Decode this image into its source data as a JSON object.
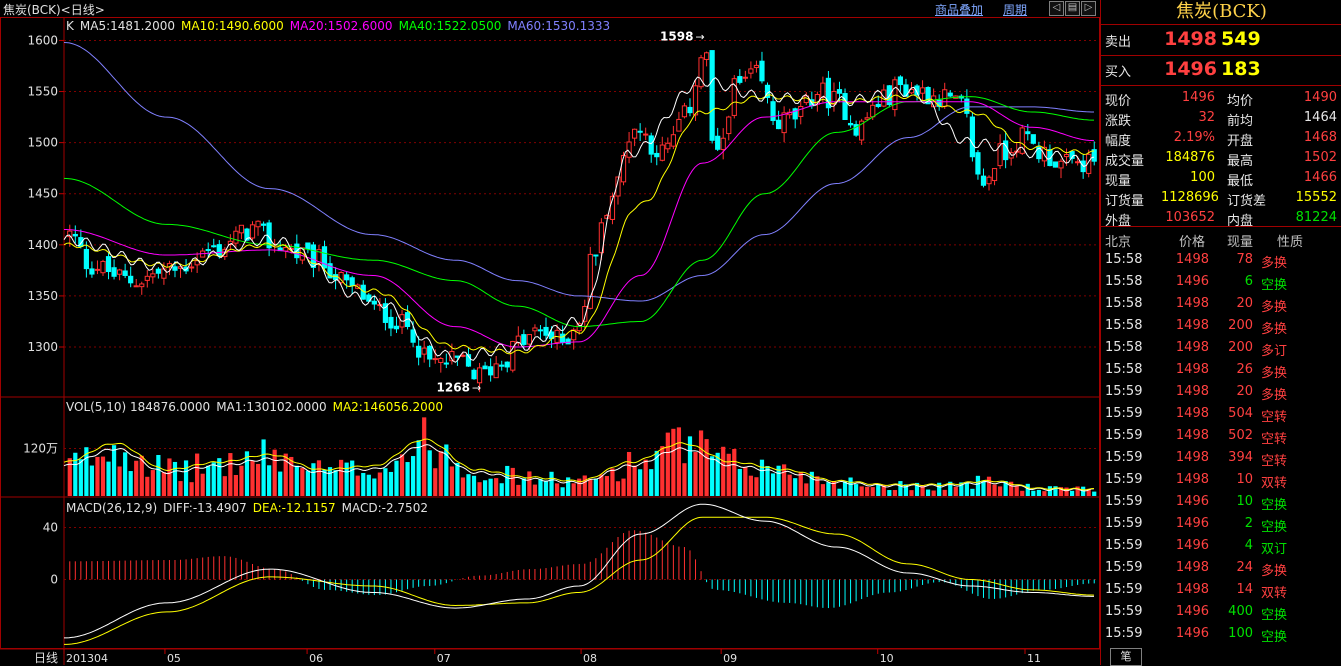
{
  "header": {
    "title": "焦炭(BCK)<日线>",
    "menu_overlay": "商品叠加",
    "menu_period": "周期"
  },
  "chart_data": [
    {
      "type": "candlestick",
      "panel": "price",
      "ma_text": [
        {
          "label": "K",
          "color": "#e0e0e0"
        },
        {
          "label": "MA5:1481.2000",
          "color": "#e0e0e0"
        },
        {
          "label": "MA10:1490.6000",
          "color": "#ffff00"
        },
        {
          "label": "MA20:1502.6000",
          "color": "#ff00ff"
        },
        {
          "label": "MA40:1522.0500",
          "color": "#00ff00"
        },
        {
          "label": "MA60:1530.1333",
          "color": "#8080ff"
        }
      ],
      "y_ticks": [
        1300,
        1350,
        1400,
        1450,
        1500,
        1550,
        1600
      ],
      "ylim": [
        1255,
        1620
      ],
      "annotations": [
        {
          "text": "1598",
          "value": 1598,
          "at": 0.615
        },
        {
          "text": "1268",
          "value": 1268,
          "at": 0.398
        }
      ],
      "anchors": [
        [
          0,
          1410
        ],
        [
          0.02,
          1380
        ],
        [
          0.06,
          1365
        ],
        [
          0.1,
          1375
        ],
        [
          0.14,
          1395
        ],
        [
          0.18,
          1415
        ],
        [
          0.2,
          1400
        ],
        [
          0.24,
          1385
        ],
        [
          0.28,
          1355
        ],
        [
          0.3,
          1335
        ],
        [
          0.33,
          1320
        ],
        [
          0.35,
          1285
        ],
        [
          0.38,
          1285
        ],
        [
          0.4,
          1272
        ],
        [
          0.42,
          1285
        ],
        [
          0.44,
          1305
        ],
        [
          0.46,
          1315
        ],
        [
          0.48,
          1305
        ],
        [
          0.5,
          1330
        ],
        [
          0.51,
          1390
        ],
        [
          0.53,
          1450
        ],
        [
          0.55,
          1515
        ],
        [
          0.58,
          1490
        ],
        [
          0.6,
          1525
        ],
        [
          0.62,
          1590
        ],
        [
          0.63,
          1480
        ],
        [
          0.65,
          1555
        ],
        [
          0.67,
          1565
        ],
        [
          0.69,
          1520
        ],
        [
          0.71,
          1525
        ],
        [
          0.73,
          1550
        ],
        [
          0.75,
          1540
        ],
        [
          0.77,
          1515
        ],
        [
          0.79,
          1540
        ],
        [
          0.81,
          1555
        ],
        [
          0.83,
          1550
        ],
        [
          0.85,
          1545
        ],
        [
          0.87,
          1535
        ],
        [
          0.89,
          1460
        ],
        [
          0.91,
          1490
        ],
        [
          0.93,
          1505
        ],
        [
          0.95,
          1490
        ],
        [
          0.97,
          1478
        ],
        [
          1.0,
          1480
        ]
      ],
      "ma5": [
        [
          0,
          1405
        ],
        [
          0.1,
          1378
        ],
        [
          0.2,
          1405
        ],
        [
          0.3,
          1345
        ],
        [
          0.38,
          1290
        ],
        [
          0.44,
          1300
        ],
        [
          0.5,
          1325
        ],
        [
          0.55,
          1490
        ],
        [
          0.62,
          1560
        ],
        [
          0.68,
          1545
        ],
        [
          0.75,
          1540
        ],
        [
          0.82,
          1550
        ],
        [
          0.88,
          1500
        ],
        [
          0.94,
          1490
        ],
        [
          1.0,
          1481
        ]
      ],
      "ma10": [
        [
          0,
          1400
        ],
        [
          0.1,
          1380
        ],
        [
          0.2,
          1400
        ],
        [
          0.3,
          1355
        ],
        [
          0.38,
          1300
        ],
        [
          0.44,
          1295
        ],
        [
          0.5,
          1315
        ],
        [
          0.56,
          1440
        ],
        [
          0.62,
          1530
        ],
        [
          0.68,
          1545
        ],
        [
          0.75,
          1540
        ],
        [
          0.82,
          1545
        ],
        [
          0.88,
          1530
        ],
        [
          0.94,
          1495
        ],
        [
          1.0,
          1490
        ]
      ],
      "ma20": [
        [
          0,
          1415
        ],
        [
          0.1,
          1390
        ],
        [
          0.2,
          1395
        ],
        [
          0.3,
          1370
        ],
        [
          0.38,
          1320
        ],
        [
          0.44,
          1300
        ],
        [
          0.5,
          1305
        ],
        [
          0.56,
          1370
        ],
        [
          0.62,
          1480
        ],
        [
          0.68,
          1525
        ],
        [
          0.75,
          1540
        ],
        [
          0.82,
          1540
        ],
        [
          0.88,
          1540
        ],
        [
          0.94,
          1515
        ],
        [
          1.0,
          1502
        ]
      ],
      "ma40": [
        [
          0,
          1465
        ],
        [
          0.1,
          1420
        ],
        [
          0.2,
          1400
        ],
        [
          0.3,
          1385
        ],
        [
          0.38,
          1365
        ],
        [
          0.44,
          1340
        ],
        [
          0.5,
          1320
        ],
        [
          0.56,
          1325
        ],
        [
          0.62,
          1385
        ],
        [
          0.68,
          1450
        ],
        [
          0.75,
          1510
        ],
        [
          0.82,
          1540
        ],
        [
          0.88,
          1545
        ],
        [
          0.94,
          1530
        ],
        [
          1.0,
          1522
        ]
      ],
      "ma60": [
        [
          0,
          1598
        ],
        [
          0.1,
          1525
        ],
        [
          0.2,
          1455
        ],
        [
          0.3,
          1410
        ],
        [
          0.38,
          1385
        ],
        [
          0.44,
          1365
        ],
        [
          0.5,
          1350
        ],
        [
          0.56,
          1345
        ],
        [
          0.62,
          1370
        ],
        [
          0.68,
          1410
        ],
        [
          0.75,
          1460
        ],
        [
          0.82,
          1505
        ],
        [
          0.88,
          1535
        ],
        [
          0.94,
          1535
        ],
        [
          1.0,
          1530
        ]
      ]
    },
    {
      "type": "bar",
      "panel": "volume",
      "text": [
        {
          "label": "VOL(5,10) 184876.0000",
          "color": "#e0e0e0"
        },
        {
          "label": "MA1:130102.0000",
          "color": "#e0e0e0"
        },
        {
          "label": "MA2:146056.2000",
          "color": "#ffff00"
        }
      ],
      "y_tick_label": "120万",
      "y_tick_value": 120,
      "ylim": [
        0,
        240
      ],
      "envelope": [
        [
          0,
          90
        ],
        [
          0.05,
          140
        ],
        [
          0.1,
          70
        ],
        [
          0.15,
          90
        ],
        [
          0.2,
          110
        ],
        [
          0.25,
          70
        ],
        [
          0.3,
          80
        ],
        [
          0.35,
          150
        ],
        [
          0.4,
          70
        ],
        [
          0.45,
          50
        ],
        [
          0.5,
          40
        ],
        [
          0.55,
          90
        ],
        [
          0.6,
          140
        ],
        [
          0.65,
          90
        ],
        [
          0.7,
          70
        ],
        [
          0.75,
          40
        ],
        [
          0.8,
          30
        ],
        [
          0.85,
          30
        ],
        [
          0.9,
          40
        ],
        [
          0.95,
          20
        ],
        [
          1.0,
          18
        ]
      ]
    },
    {
      "type": "bar",
      "panel": "macd",
      "text": [
        {
          "label": "MACD(26,12,9)",
          "color": "#e0e0e0"
        },
        {
          "label": "DIFF:-13.4907",
          "color": "#e0e0e0"
        },
        {
          "label": "DEA:-12.1157",
          "color": "#ffff00"
        },
        {
          "label": "MACD:-2.7502",
          "color": "#e0e0e0"
        }
      ],
      "y_ticks": [
        0,
        40
      ],
      "ylim": [
        -52,
        62
      ],
      "hist": [
        [
          0,
          14
        ],
        [
          0.1,
          15
        ],
        [
          0.15,
          18
        ],
        [
          0.2,
          8
        ],
        [
          0.25,
          -8
        ],
        [
          0.3,
          -12
        ],
        [
          0.35,
          -5
        ],
        [
          0.4,
          3
        ],
        [
          0.45,
          8
        ],
        [
          0.5,
          12
        ],
        [
          0.55,
          38
        ],
        [
          0.6,
          25
        ],
        [
          0.63,
          -8
        ],
        [
          0.7,
          -18
        ],
        [
          0.74,
          -22
        ],
        [
          0.8,
          -10
        ],
        [
          0.85,
          -2
        ],
        [
          0.9,
          -15
        ],
        [
          0.95,
          -8
        ],
        [
          1.0,
          -3
        ]
      ],
      "diff": [
        [
          0,
          -45
        ],
        [
          0.1,
          -18
        ],
        [
          0.2,
          8
        ],
        [
          0.3,
          -10
        ],
        [
          0.38,
          -22
        ],
        [
          0.45,
          -15
        ],
        [
          0.5,
          -5
        ],
        [
          0.56,
          35
        ],
        [
          0.62,
          58
        ],
        [
          0.68,
          45
        ],
        [
          0.75,
          25
        ],
        [
          0.82,
          5
        ],
        [
          0.88,
          -5
        ],
        [
          0.94,
          -10
        ],
        [
          1.0,
          -13
        ]
      ],
      "dea": [
        [
          0,
          -50
        ],
        [
          0.1,
          -25
        ],
        [
          0.2,
          2
        ],
        [
          0.3,
          -5
        ],
        [
          0.38,
          -20
        ],
        [
          0.45,
          -18
        ],
        [
          0.5,
          -10
        ],
        [
          0.56,
          15
        ],
        [
          0.62,
          48
        ],
        [
          0.68,
          48
        ],
        [
          0.75,
          35
        ],
        [
          0.82,
          12
        ],
        [
          0.88,
          0
        ],
        [
          0.94,
          -8
        ],
        [
          1.0,
          -12
        ]
      ]
    },
    {
      "type": "axis",
      "panel": "dates",
      "label": "日线",
      "ticks": [
        {
          "label": "201304",
          "at": 0.0
        },
        {
          "label": "05",
          "at": 0.098
        },
        {
          "label": "06",
          "at": 0.236
        },
        {
          "label": "07",
          "at": 0.36
        },
        {
          "label": "08",
          "at": 0.502
        },
        {
          "label": "09",
          "at": 0.638
        },
        {
          "label": "10",
          "at": 0.79
        },
        {
          "label": "11",
          "at": 0.933
        }
      ]
    }
  ],
  "quote": {
    "name": "焦炭(BCK)",
    "sell_label": "卖出",
    "sell_price": "1498",
    "sell_qty": "549",
    "buy_label": "买入",
    "buy_price": "1496",
    "buy_qty": "183",
    "stats": [
      {
        "l1": "现价",
        "v1": "1496",
        "c1": "red",
        "l2": "均价",
        "v2": "1490",
        "c2": "red"
      },
      {
        "l1": "涨跌",
        "v1": "32",
        "c1": "red",
        "l2": "前均",
        "v2": "1464",
        "c2": "white"
      },
      {
        "l1": "幅度",
        "v1": "2.19%",
        "c1": "red",
        "l2": "开盘",
        "v2": "1468",
        "c2": "red"
      },
      {
        "l1": "成交量",
        "v1": "184876",
        "c1": "yellow",
        "l2": "最高",
        "v2": "1502",
        "c2": "red"
      },
      {
        "l1": "现量",
        "v1": "100",
        "c1": "yellow",
        "l2": "最低",
        "v2": "1466",
        "c2": "red"
      },
      {
        "l1": "订货量",
        "v1": "1128696",
        "c1": "yellow",
        "l2": "订货差",
        "v2": "15552",
        "c2": "yellow"
      },
      {
        "l1": "外盘",
        "v1": "103652",
        "c1": "red",
        "l2": "内盘",
        "v2": "81224",
        "c2": "green"
      }
    ],
    "trade_headers": {
      "time": "北京",
      "price": "价格",
      "qty": "现量",
      "type": "性质"
    },
    "trades": [
      {
        "time": "15:58",
        "price": "1498",
        "qty": "78",
        "type": "多换",
        "c": "red"
      },
      {
        "time": "15:58",
        "price": "1496",
        "qty": "6",
        "type": "空换",
        "c": "green"
      },
      {
        "time": "15:58",
        "price": "1498",
        "qty": "20",
        "type": "多换",
        "c": "red"
      },
      {
        "time": "15:58",
        "price": "1498",
        "qty": "200",
        "type": "多换",
        "c": "red"
      },
      {
        "time": "15:58",
        "price": "1498",
        "qty": "200",
        "type": "多订",
        "c": "red"
      },
      {
        "time": "15:58",
        "price": "1498",
        "qty": "26",
        "type": "多换",
        "c": "red"
      },
      {
        "time": "15:59",
        "price": "1498",
        "qty": "20",
        "type": "多换",
        "c": "red"
      },
      {
        "time": "15:59",
        "price": "1498",
        "qty": "504",
        "type": "空转",
        "c": "red"
      },
      {
        "time": "15:59",
        "price": "1498",
        "qty": "502",
        "type": "空转",
        "c": "red"
      },
      {
        "time": "15:59",
        "price": "1498",
        "qty": "394",
        "type": "空转",
        "c": "red"
      },
      {
        "time": "15:59",
        "price": "1498",
        "qty": "10",
        "type": "双转",
        "c": "red"
      },
      {
        "time": "15:59",
        "price": "1496",
        "qty": "10",
        "type": "空换",
        "c": "green"
      },
      {
        "time": "15:59",
        "price": "1496",
        "qty": "2",
        "type": "空换",
        "c": "green"
      },
      {
        "time": "15:59",
        "price": "1496",
        "qty": "4",
        "type": "双订",
        "c": "green"
      },
      {
        "time": "15:59",
        "price": "1498",
        "qty": "24",
        "type": "多换",
        "c": "red"
      },
      {
        "time": "15:59",
        "price": "1498",
        "qty": "14",
        "type": "双转",
        "c": "red"
      },
      {
        "time": "15:59",
        "price": "1496",
        "qty": "400",
        "type": "空换",
        "c": "green"
      },
      {
        "time": "15:59",
        "price": "1496",
        "qty": "100",
        "type": "空换",
        "c": "green"
      }
    ],
    "bottom_button": "笔"
  },
  "colors": {
    "up": "#ff3030",
    "down": "#00ffff",
    "grid": "#800000",
    "border": "#a00000"
  }
}
